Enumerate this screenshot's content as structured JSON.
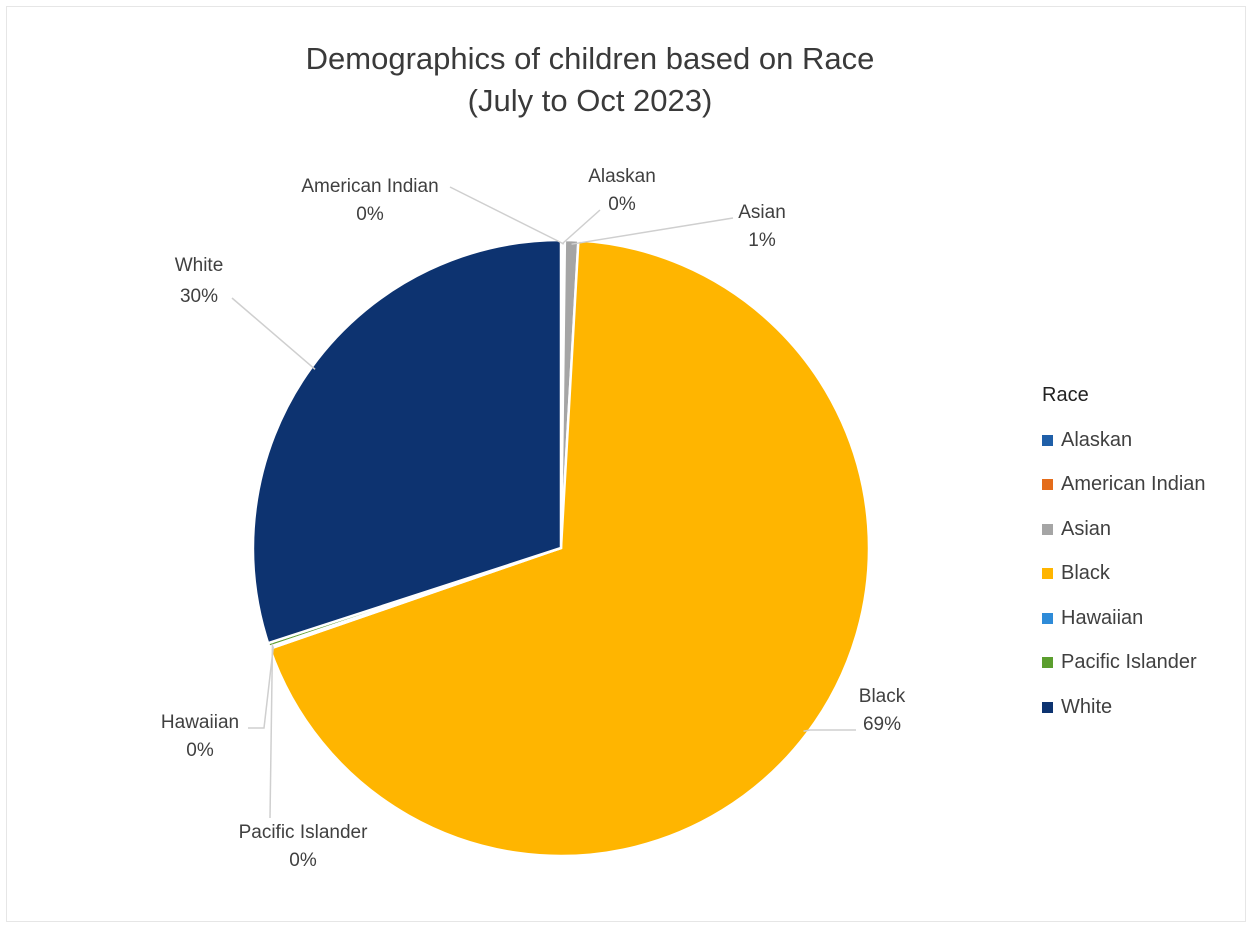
{
  "chart_data": {
    "type": "pie",
    "title": "Demographics of children based on Race",
    "subtitle": "(July to Oct 2023)",
    "legend_title": "Race",
    "legend_position": "right",
    "slices": [
      {
        "label": "Alaskan",
        "value": 0.1,
        "display": "0%",
        "color": "#1f5fa8"
      },
      {
        "label": "American Indian",
        "value": 0.1,
        "display": "0%",
        "color": "#e46c1a"
      },
      {
        "label": "Asian",
        "value": 0.7,
        "display": "1%",
        "color": "#a5a5a5"
      },
      {
        "label": "Black",
        "value": 68.8,
        "display": "69%",
        "color": "#ffb500"
      },
      {
        "label": "Hawaiian",
        "value": 0.1,
        "display": "0%",
        "color": "#2e8bd8"
      },
      {
        "label": "Pacific Islander",
        "value": 0.2,
        "display": "0%",
        "color": "#5b9e2e"
      },
      {
        "label": "White",
        "value": 30.0,
        "display": "30%",
        "color": "#0d3370"
      }
    ]
  }
}
